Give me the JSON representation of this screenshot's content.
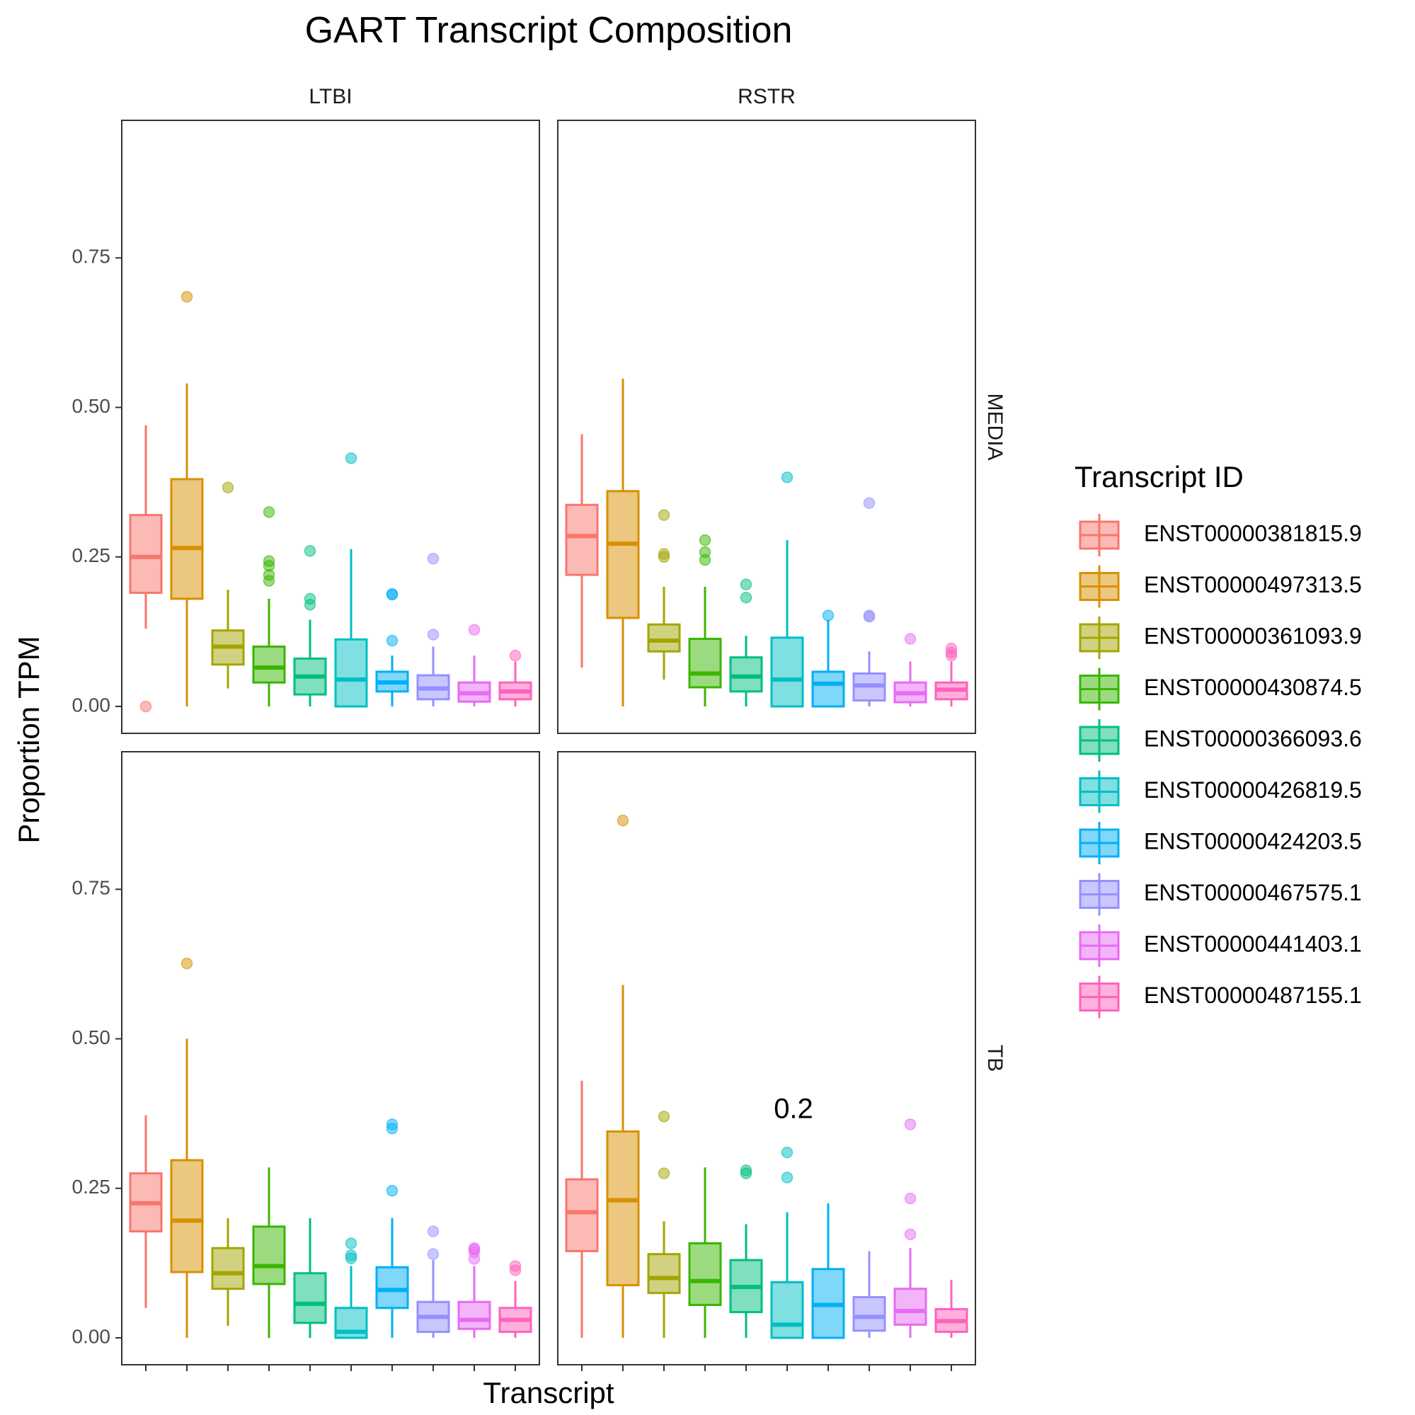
{
  "chart_data": {
    "type": "boxplot",
    "title": "GART Transcript Composition",
    "xlabel": "Transcript",
    "ylabel": "Proportion TPM",
    "ylim": [
      -0.045,
      0.98
    ],
    "yticks": [
      0.0,
      0.25,
      0.5,
      0.75
    ],
    "ytick_labels": [
      "0.00",
      "0.25",
      "0.50",
      "0.75"
    ],
    "grid": false,
    "legend": {
      "title": "Transcript ID",
      "position": "right",
      "entries": [
        {
          "label": "ENST00000381815.9",
          "color": "#F8766D"
        },
        {
          "label": "ENST00000497313.5",
          "color": "#D89000"
        },
        {
          "label": "ENST00000361093.9",
          "color": "#A3A500"
        },
        {
          "label": "ENST00000430874.5",
          "color": "#39B600"
        },
        {
          "label": "ENST00000366093.6",
          "color": "#00BF7D"
        },
        {
          "label": "ENST00000426819.5",
          "color": "#00BFC4"
        },
        {
          "label": "ENST00000424203.5",
          "color": "#00B0F6"
        },
        {
          "label": "ENST00000467575.1",
          "color": "#9590FF"
        },
        {
          "label": "ENST00000441403.1",
          "color": "#E76BF3"
        },
        {
          "label": "ENST00000487155.1",
          "color": "#FF62BC"
        }
      ]
    },
    "panels": [
      {
        "col": "LTBI",
        "row": "MEDIA",
        "annotation": "",
        "boxes": [
          {
            "min": 0.13,
            "q1": 0.19,
            "median": 0.25,
            "q3": 0.32,
            "max": 0.47,
            "outliers": [
              0.0
            ]
          },
          {
            "min": 0.0,
            "q1": 0.18,
            "median": 0.265,
            "q3": 0.38,
            "max": 0.54,
            "outliers": [
              0.685
            ]
          },
          {
            "min": 0.03,
            "q1": 0.07,
            "median": 0.1,
            "q3": 0.127,
            "max": 0.195,
            "outliers": [
              0.366
            ]
          },
          {
            "min": 0.0,
            "q1": 0.04,
            "median": 0.065,
            "q3": 0.1,
            "max": 0.18,
            "outliers": [
              0.21,
              0.22,
              0.235,
              0.243,
              0.325
            ]
          },
          {
            "min": 0.0,
            "q1": 0.02,
            "median": 0.05,
            "q3": 0.08,
            "max": 0.145,
            "outliers": [
              0.17,
              0.18,
              0.26
            ]
          },
          {
            "min": 0.0,
            "q1": 0.0,
            "median": 0.045,
            "q3": 0.112,
            "max": 0.263,
            "outliers": [
              0.415
            ]
          },
          {
            "min": 0.0,
            "q1": 0.025,
            "median": 0.04,
            "q3": 0.058,
            "max": 0.085,
            "outliers": [
              0.11,
              0.187,
              0.188
            ]
          },
          {
            "min": 0.0,
            "q1": 0.012,
            "median": 0.03,
            "q3": 0.052,
            "max": 0.1,
            "outliers": [
              0.12,
              0.247
            ]
          },
          {
            "min": 0.0,
            "q1": 0.008,
            "median": 0.022,
            "q3": 0.04,
            "max": 0.085,
            "outliers": [
              0.128
            ]
          },
          {
            "min": 0.0,
            "q1": 0.012,
            "median": 0.025,
            "q3": 0.04,
            "max": 0.075,
            "outliers": [
              0.085
            ]
          }
        ]
      },
      {
        "col": "RSTR",
        "row": "MEDIA",
        "annotation": "",
        "boxes": [
          {
            "min": 0.065,
            "q1": 0.22,
            "median": 0.285,
            "q3": 0.337,
            "max": 0.455,
            "outliers": []
          },
          {
            "min": 0.0,
            "q1": 0.148,
            "median": 0.272,
            "q3": 0.36,
            "max": 0.548,
            "outliers": []
          },
          {
            "min": 0.045,
            "q1": 0.092,
            "median": 0.11,
            "q3": 0.137,
            "max": 0.2,
            "outliers": [
              0.25,
              0.255,
              0.32
            ]
          },
          {
            "min": 0.0,
            "q1": 0.032,
            "median": 0.055,
            "q3": 0.113,
            "max": 0.2,
            "outliers": [
              0.245,
              0.258,
              0.278
            ]
          },
          {
            "min": 0.0,
            "q1": 0.025,
            "median": 0.05,
            "q3": 0.082,
            "max": 0.118,
            "outliers": [
              0.182,
              0.204
            ]
          },
          {
            "min": 0.0,
            "q1": 0.0,
            "median": 0.045,
            "q3": 0.115,
            "max": 0.278,
            "outliers": [
              0.383
            ]
          },
          {
            "min": 0.0,
            "q1": 0.0,
            "median": 0.038,
            "q3": 0.058,
            "max": 0.145,
            "outliers": [
              0.152
            ]
          },
          {
            "min": 0.0,
            "q1": 0.01,
            "median": 0.035,
            "q3": 0.055,
            "max": 0.092,
            "outliers": [
              0.15,
              0.152,
              0.34
            ]
          },
          {
            "min": 0.0,
            "q1": 0.007,
            "median": 0.022,
            "q3": 0.04,
            "max": 0.075,
            "outliers": [
              0.113
            ]
          },
          {
            "min": 0.0,
            "q1": 0.012,
            "median": 0.028,
            "q3": 0.04,
            "max": 0.075,
            "outliers": [
              0.085,
              0.09,
              0.097
            ]
          }
        ]
      },
      {
        "col": "LTBI",
        "row": "TB",
        "annotation": "",
        "boxes": [
          {
            "min": 0.05,
            "q1": 0.178,
            "median": 0.225,
            "q3": 0.275,
            "max": 0.372,
            "outliers": []
          },
          {
            "min": 0.0,
            "q1": 0.11,
            "median": 0.196,
            "q3": 0.297,
            "max": 0.5,
            "outliers": [
              0.626
            ]
          },
          {
            "min": 0.02,
            "q1": 0.082,
            "median": 0.108,
            "q3": 0.15,
            "max": 0.2,
            "outliers": []
          },
          {
            "min": 0.0,
            "q1": 0.09,
            "median": 0.12,
            "q3": 0.186,
            "max": 0.285,
            "outliers": []
          },
          {
            "min": 0.0,
            "q1": 0.025,
            "median": 0.057,
            "q3": 0.108,
            "max": 0.2,
            "outliers": []
          },
          {
            "min": 0.0,
            "q1": 0.0,
            "median": 0.01,
            "q3": 0.05,
            "max": 0.12,
            "outliers": [
              0.133,
              0.138,
              0.158
            ]
          },
          {
            "min": 0.0,
            "q1": 0.05,
            "median": 0.08,
            "q3": 0.118,
            "max": 0.2,
            "outliers": [
              0.246,
              0.35,
              0.357
            ]
          },
          {
            "min": 0.0,
            "q1": 0.01,
            "median": 0.035,
            "q3": 0.06,
            "max": 0.13,
            "outliers": [
              0.14,
              0.178
            ]
          },
          {
            "min": 0.0,
            "q1": 0.015,
            "median": 0.03,
            "q3": 0.06,
            "max": 0.12,
            "outliers": [
              0.132,
              0.143,
              0.148,
              0.15
            ]
          },
          {
            "min": 0.0,
            "q1": 0.01,
            "median": 0.03,
            "q3": 0.05,
            "max": 0.095,
            "outliers": [
              0.113,
              0.12
            ]
          }
        ]
      },
      {
        "col": "RSTR",
        "row": "TB",
        "annotation": "0.2",
        "boxes": [
          {
            "min": 0.0,
            "q1": 0.145,
            "median": 0.21,
            "q3": 0.265,
            "max": 0.43,
            "outliers": []
          },
          {
            "min": 0.0,
            "q1": 0.088,
            "median": 0.23,
            "q3": 0.345,
            "max": 0.59,
            "outliers": [
              0.865
            ]
          },
          {
            "min": 0.0,
            "q1": 0.075,
            "median": 0.1,
            "q3": 0.14,
            "max": 0.195,
            "outliers": [
              0.275,
              0.37
            ]
          },
          {
            "min": 0.0,
            "q1": 0.055,
            "median": 0.095,
            "q3": 0.158,
            "max": 0.285,
            "outliers": []
          },
          {
            "min": 0.0,
            "q1": 0.043,
            "median": 0.085,
            "q3": 0.13,
            "max": 0.19,
            "outliers": [
              0.275,
              0.28
            ]
          },
          {
            "min": 0.0,
            "q1": 0.0,
            "median": 0.022,
            "q3": 0.093,
            "max": 0.21,
            "outliers": [
              0.268,
              0.31
            ]
          },
          {
            "min": 0.0,
            "q1": 0.0,
            "median": 0.055,
            "q3": 0.115,
            "max": 0.225,
            "outliers": []
          },
          {
            "min": 0.0,
            "q1": 0.012,
            "median": 0.035,
            "q3": 0.068,
            "max": 0.145,
            "outliers": []
          },
          {
            "min": 0.0,
            "q1": 0.022,
            "median": 0.045,
            "q3": 0.082,
            "max": 0.15,
            "outliers": [
              0.173,
              0.233,
              0.357
            ]
          },
          {
            "min": 0.0,
            "q1": 0.01,
            "median": 0.028,
            "q3": 0.048,
            "max": 0.097,
            "outliers": []
          }
        ]
      }
    ]
  }
}
